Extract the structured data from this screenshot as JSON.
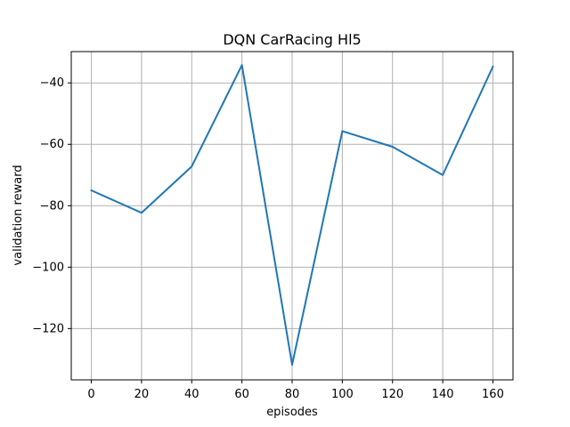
{
  "chart_data": {
    "type": "line",
    "title": "DQN CarRacing Hl5",
    "xlabel": "episodes",
    "ylabel": "validation reward",
    "x": [
      0,
      20,
      40,
      60,
      80,
      100,
      120,
      140,
      160
    ],
    "series": [
      {
        "values": [
          -75,
          -82.3,
          -67.2,
          -34.2,
          -131.8,
          -55.7,
          -60.8,
          -70,
          -34.7
        ],
        "color": "#1f77b4"
      }
    ],
    "xticks": [
      0,
      20,
      40,
      60,
      80,
      100,
      120,
      140,
      160
    ],
    "yticks": [
      -120,
      -100,
      -80,
      -60,
      -40
    ],
    "xtick_labels": [
      "0",
      "20",
      "40",
      "60",
      "80",
      "100",
      "120",
      "140",
      "160"
    ],
    "ytick_labels": [
      "−120",
      "−100",
      "−80",
      "−60",
      "−40"
    ],
    "xlim": [
      -8,
      168
    ],
    "ylim": [
      -136.7,
      -29.8
    ],
    "grid": true,
    "colors": {
      "line": "#1f77b4",
      "grid": "#b0b0b0",
      "axes": "#000000"
    }
  }
}
